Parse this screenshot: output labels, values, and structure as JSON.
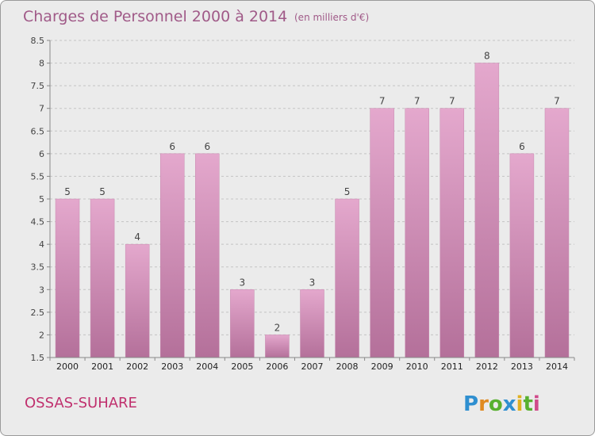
{
  "chart_data": {
    "type": "bar",
    "title": "Charges de Personnel 2000 à 2014",
    "subtitle": "(en milliers d'€)",
    "categories": [
      "2000",
      "2001",
      "2002",
      "2003",
      "2004",
      "2005",
      "2006",
      "2007",
      "2008",
      "2009",
      "2010",
      "2011",
      "2012",
      "2013",
      "2014"
    ],
    "values": [
      5,
      5,
      4,
      6,
      6,
      3,
      2,
      3,
      5,
      7,
      7,
      7,
      8,
      6,
      7
    ],
    "value_labels": [
      "5",
      "5",
      "4",
      "6",
      "6",
      "3",
      "2",
      "3",
      "5",
      "7",
      "7",
      "7",
      "8",
      "6",
      "7"
    ],
    "y_ticks": [
      "1.5",
      "2",
      "2.5",
      "3",
      "3.5",
      "4",
      "4.5",
      "5",
      "5.5",
      "6",
      "6.5",
      "7",
      "7.5",
      "8",
      "8.5"
    ],
    "ylim": [
      1.5,
      8.5
    ],
    "grid": "horizontal dashed",
    "bar_color": "#d98cba"
  },
  "footer": {
    "commune": "OSSAS-SUHARE",
    "logo": "Proxiti"
  }
}
